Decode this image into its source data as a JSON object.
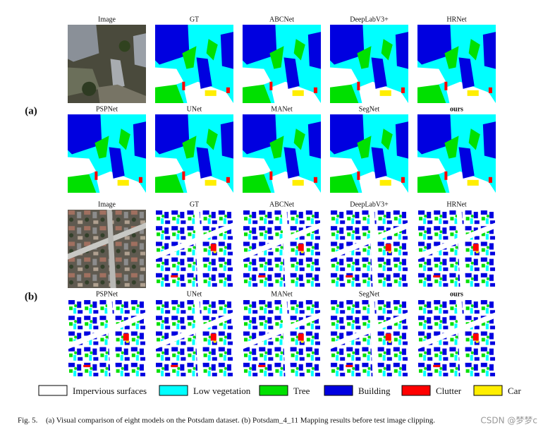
{
  "panels": [
    {
      "label": "(a)",
      "rows": [
        [
          "Image",
          "GT",
          "ABCNet",
          "DeepLabV3+",
          "HRNet"
        ],
        [
          "PSPNet",
          "UNet",
          "MANet",
          "SegNet",
          "ours"
        ]
      ]
    },
    {
      "label": "(b)",
      "rows": [
        [
          "Image",
          "GT",
          "ABCNet",
          "DeepLabV3+",
          "HRNet"
        ],
        [
          "PSPNet",
          "UNet",
          "MANet",
          "SegNet",
          "ours"
        ]
      ]
    }
  ],
  "legend": [
    {
      "name": "Impervious surfaces",
      "color": "#ffffff"
    },
    {
      "name": "Low vegetation",
      "color": "#00ffff"
    },
    {
      "name": "Tree",
      "color": "#00e000"
    },
    {
      "name": "Building",
      "color": "#0000e0"
    },
    {
      "name": "Clutter",
      "color": "#ff0000"
    },
    {
      "name": "Car",
      "color": "#ffee00"
    }
  ],
  "caption": {
    "number": "Fig. 5.",
    "text": "(a) Visual comparison of eight models on the Potsdam dataset. (b) Potsdam_4_11 Mapping results before test image clipping."
  },
  "watermark": "CSDN @梦梦c"
}
